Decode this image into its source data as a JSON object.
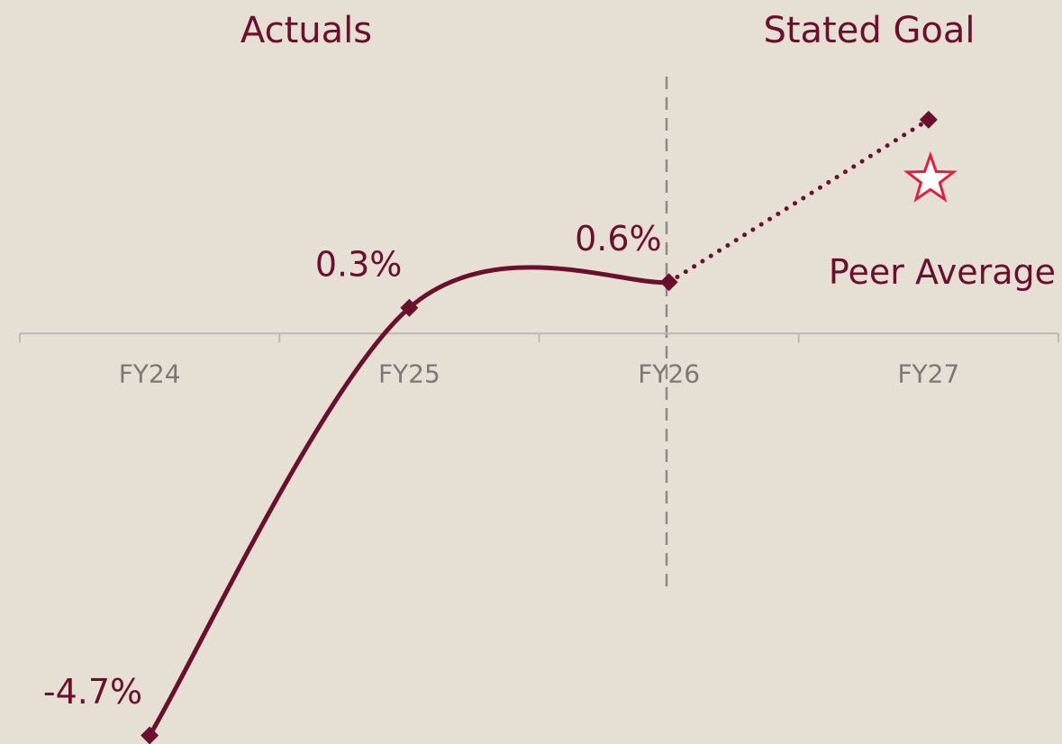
{
  "chart_data": {
    "type": "line",
    "section_labels": [
      "Actuals",
      "Stated Goal"
    ],
    "categories": [
      "FY24",
      "FY25",
      "FY26",
      "FY27"
    ],
    "values": [
      -4.7,
      0.3,
      0.6,
      2.5
    ],
    "value_labels": [
      "-4.7%",
      "0.3%",
      "0.6%",
      null
    ],
    "segment_styles": [
      "solid",
      "solid",
      "dotted"
    ],
    "color": "#6b0f2e",
    "ylim": [
      -4.8,
      3.9
    ],
    "peer": {
      "label": "Peer Average",
      "value": 1.8,
      "color": "#e0203c"
    }
  }
}
